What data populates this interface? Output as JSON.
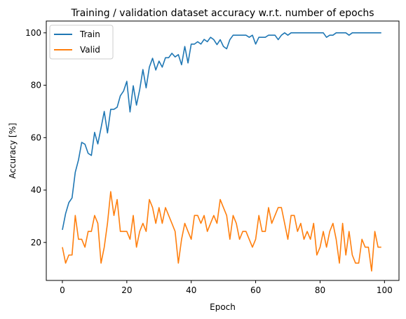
{
  "chart_data": {
    "type": "line",
    "title": "Training / validation dataset accuracy w.r.t. number of epochs",
    "xlabel": "Epoch",
    "ylabel": "Accuracy [%]",
    "xlim": [
      -5,
      104.5
    ],
    "ylim": [
      5.5,
      104.5
    ],
    "xticks": [
      0,
      20,
      40,
      60,
      80,
      100
    ],
    "yticks": [
      20,
      40,
      60,
      80,
      100
    ],
    "xtick_labels": [
      "0",
      "20",
      "40",
      "60",
      "80",
      "100"
    ],
    "ytick_labels": [
      "20",
      "40",
      "60",
      "80",
      "100"
    ],
    "grid": false,
    "legend_position": "upper-left",
    "x": [
      0,
      1,
      2,
      3,
      4,
      5,
      6,
      7,
      8,
      9,
      10,
      11,
      12,
      13,
      14,
      15,
      16,
      17,
      18,
      19,
      20,
      21,
      22,
      23,
      24,
      25,
      26,
      27,
      28,
      29,
      30,
      31,
      32,
      33,
      34,
      35,
      36,
      37,
      38,
      39,
      40,
      41,
      42,
      43,
      44,
      45,
      46,
      47,
      48,
      49,
      50,
      51,
      52,
      53,
      54,
      55,
      56,
      57,
      58,
      59,
      60,
      61,
      62,
      63,
      64,
      65,
      66,
      67,
      68,
      69,
      70,
      71,
      72,
      73,
      74,
      75,
      76,
      77,
      78,
      79,
      80,
      81,
      82,
      83,
      84,
      85,
      86,
      87,
      88,
      89,
      90,
      91,
      92,
      93,
      94,
      95,
      96,
      97,
      98,
      99
    ],
    "series": [
      {
        "name": "Train",
        "color": "#1f77b4",
        "values": [
          24.8,
          31,
          35.2,
          37,
          46.8,
          51.5,
          58.2,
          57.5,
          54,
          53.2,
          62,
          57.6,
          63.7,
          70,
          61.8,
          70.8,
          70.8,
          71.6,
          76,
          77.8,
          81.5,
          69.8,
          79.8,
          72.4,
          78.3,
          86,
          79,
          86.9,
          90.3,
          85.8,
          89.2,
          86.9,
          90.5,
          90.5,
          92.2,
          90.8,
          91.7,
          87.8,
          94.8,
          88.5,
          95.7,
          95.7,
          96.6,
          95.7,
          97.5,
          96.6,
          98.3,
          97.4,
          95.5,
          97.4,
          94.8,
          93.9,
          97.4,
          99.1,
          99.1,
          99.1,
          99.1,
          99.1,
          98.3,
          99.1,
          95.7,
          98.3,
          98.3,
          98.3,
          99.1,
          99.1,
          99.1,
          97.4,
          99.1,
          100,
          99.1,
          100,
          100,
          100,
          100,
          100,
          100,
          100,
          100,
          100,
          100,
          100,
          98.3,
          99.1,
          99.1,
          100,
          100,
          100,
          100,
          99.1,
          100,
          100,
          100,
          100,
          100,
          100,
          100,
          100,
          100,
          100
        ]
      },
      {
        "name": "Valid",
        "color": "#ff7f0e",
        "values": [
          18.2,
          12.1,
          15.2,
          15.2,
          30.3,
          21.2,
          21.2,
          18.2,
          24.2,
          24.2,
          30.3,
          27.3,
          12.1,
          18.2,
          27.3,
          39.4,
          30.3,
          36.4,
          24.2,
          24.2,
          24.2,
          21.2,
          30.3,
          18.2,
          24.2,
          27.3,
          24.2,
          36.4,
          33.3,
          27.3,
          33.3,
          27.3,
          33.3,
          30.3,
          27.3,
          24.2,
          12.1,
          21.2,
          27.3,
          24.2,
          21.2,
          30.3,
          30.3,
          27.3,
          30.3,
          24.2,
          27.3,
          30.3,
          27.3,
          36.4,
          33.3,
          30.3,
          21.2,
          30.3,
          27.3,
          21.2,
          24.2,
          24.2,
          21.2,
          18.2,
          21.2,
          30.3,
          24.2,
          24.2,
          33.3,
          27.3,
          30.3,
          33.3,
          33.3,
          27.3,
          21.2,
          30.3,
          30.3,
          24.2,
          27.3,
          21.2,
          24.2,
          21.2,
          27.3,
          15.2,
          18.2,
          24.2,
          18.2,
          24.2,
          27.3,
          21.2,
          12.1,
          27.3,
          15.2,
          24.2,
          15.2,
          12.1,
          12.1,
          21.2,
          18.2,
          18.2,
          9.1,
          24.2,
          18.2,
          18.2
        ]
      }
    ]
  }
}
